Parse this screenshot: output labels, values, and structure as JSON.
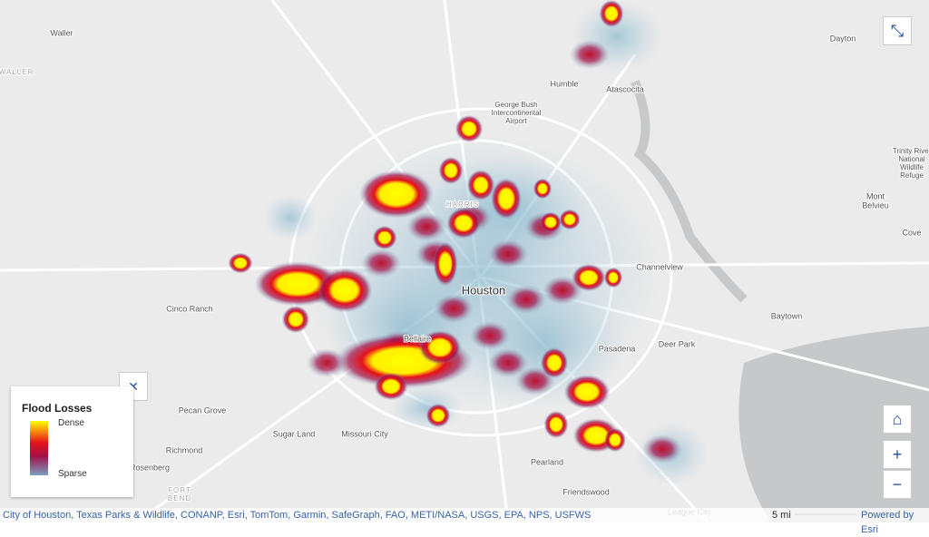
{
  "map": {
    "place_labels": [
      "Waller",
      "WALLER",
      "Humble",
      "Atascocita",
      "George Bush",
      "Intercontinental",
      "Airport",
      "Dayton",
      "Trinity River",
      "National",
      "Wildlife",
      "Refuge",
      "Mont",
      "Belvieu",
      "Cove",
      "Channelview",
      "Houston",
      "HARRIS",
      "Cinco Ranch",
      "Baytown",
      "Deer Park",
      "Pasadena",
      "Bellaire",
      "Pecan Grove",
      "Sugar Land",
      "Missouri City",
      "Richmond",
      "Rosenberg",
      "FORT",
      "BEND",
      "Pearland",
      "Friendswood",
      "League City"
    ],
    "legend": {
      "title": "Flood Losses",
      "high": "Dense",
      "low": "Sparse"
    },
    "attribution": "City of Houston, Texas Parks & Wildlife, CONANP, Esri, TomTom, Garmin, SafeGraph, FAO, METI/NASA, USGS, EPA, NPS, USFWS",
    "scale_label": "5 mi",
    "powered_by": "Powered by Esri"
  }
}
